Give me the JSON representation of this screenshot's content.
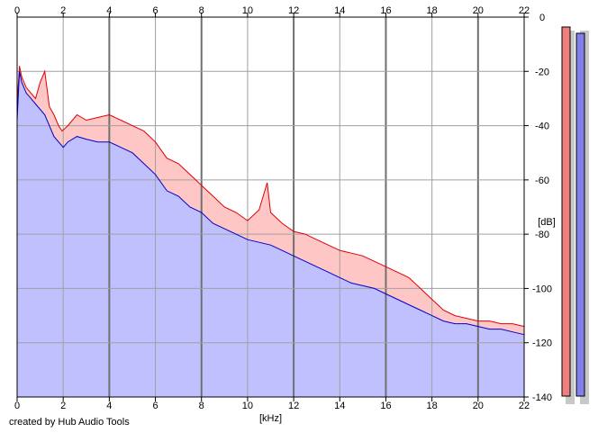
{
  "chart_data": {
    "type": "area",
    "xlabel": "[kHz]",
    "ylabel": "[dB]",
    "xlim": [
      0,
      22
    ],
    "ylim": [
      -140,
      0
    ],
    "x_ticks": [
      0,
      2,
      4,
      6,
      8,
      10,
      12,
      14,
      16,
      18,
      20,
      22
    ],
    "y_ticks": [
      0,
      -20,
      -40,
      -60,
      -80,
      -100,
      -120,
      -140
    ],
    "grid": true,
    "series": [
      {
        "color": "#e00000",
        "fill": "#ffc6c6",
        "x": [
          0,
          0.1,
          0.2,
          0.4,
          0.6,
          0.8,
          1.0,
          1.2,
          1.4,
          1.6,
          1.8,
          1.95,
          2.2,
          2.6,
          3.0,
          3.5,
          4.0,
          4.5,
          5.0,
          5.5,
          6.0,
          6.5,
          7.0,
          7.5,
          8.0,
          8.5,
          9.0,
          9.5,
          10.0,
          10.5,
          10.85,
          11.0,
          11.5,
          12.0,
          12.5,
          13.0,
          13.5,
          14.0,
          14.5,
          15.0,
          15.5,
          16.0,
          16.5,
          17.0,
          17.5,
          18.0,
          18.5,
          19.0,
          19.5,
          20.0,
          20.5,
          21.0,
          21.5,
          22.0
        ],
        "y": [
          -32,
          -18,
          -22,
          -26,
          -28,
          -30,
          -24,
          -20,
          -33,
          -36,
          -40,
          -42,
          -40,
          -36,
          -38,
          -37,
          -36,
          -38,
          -40,
          -42,
          -46,
          -52,
          -54,
          -58,
          -62,
          -66,
          -70,
          -72,
          -75,
          -71,
          -61,
          -72,
          -76,
          -79,
          -80,
          -82,
          -84,
          -86,
          -87,
          -88,
          -90,
          -92,
          -94,
          -96,
          -100,
          -104,
          -108,
          -110,
          -111,
          -112,
          -112,
          -113,
          -113,
          -114
        ]
      },
      {
        "color": "#0000c8",
        "fill": "#c0c0ff",
        "x": [
          0,
          0.1,
          0.2,
          0.4,
          0.6,
          0.8,
          1.0,
          1.2,
          1.4,
          1.6,
          1.8,
          2.0,
          2.2,
          2.6,
          3.0,
          3.5,
          4.0,
          4.5,
          5.0,
          5.5,
          6.0,
          6.5,
          7.0,
          7.5,
          8.0,
          8.5,
          9.0,
          9.5,
          10.0,
          10.5,
          11.0,
          11.5,
          12.0,
          12.5,
          13.0,
          13.5,
          14.0,
          14.5,
          15.0,
          15.5,
          16.0,
          16.5,
          17.0,
          17.5,
          18.0,
          18.5,
          19.0,
          19.5,
          20.0,
          20.5,
          21.0,
          21.5,
          22.0
        ],
        "y": [
          -38,
          -20,
          -24,
          -28,
          -30,
          -32,
          -34,
          -36,
          -40,
          -44,
          -46,
          -48,
          -46,
          -44,
          -45,
          -46,
          -46,
          -48,
          -50,
          -54,
          -58,
          -64,
          -66,
          -70,
          -72,
          -76,
          -78,
          -80,
          -82,
          -83,
          -84,
          -86,
          -88,
          -90,
          -92,
          -94,
          -96,
          -98,
          -99,
          -100,
          -102,
          -104,
          -106,
          -108,
          -110,
          -112,
          -113,
          -113,
          -114,
          -115,
          -115,
          -116,
          -117
        ]
      }
    ]
  },
  "meters": [
    {
      "color": "#f08080",
      "shadow": "#c8c8c8"
    },
    {
      "color": "#8080e8",
      "shadow": "#c8c8c8"
    }
  ],
  "footer": {
    "credit": "created by Hub Audio Tools"
  }
}
